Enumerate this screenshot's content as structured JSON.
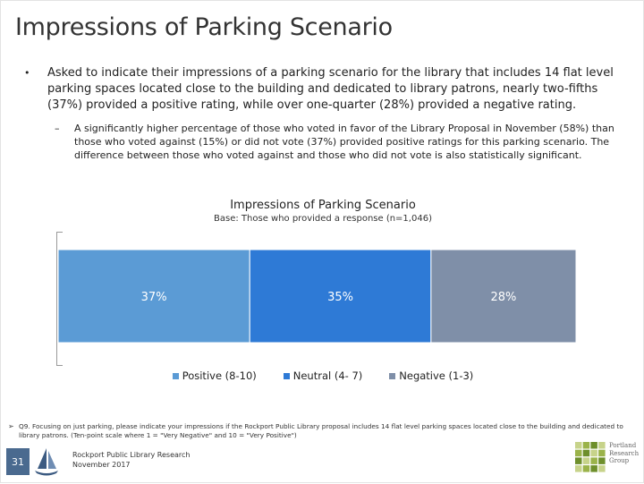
{
  "slide": {
    "title": "Impressions of Parking Scenario",
    "bullet_main": "Asked to indicate their impressions of a parking scenario for the library that includes 14 flat level parking spaces located close to the building and dedicated to library patrons, nearly two-fifths (37%) provided a positive rating, while over one-quarter (28%) provided a negative rating.",
    "bullet_sub": "A significantly higher percentage of those who voted in favor of the Library Proposal in November (58%) than those who voted against (15%) or did not vote (37%) provided positive ratings for this parking scenario. The difference between those who voted against and those who did not vote is also statistically significant.",
    "bullet_marker": "•",
    "sub_marker": "–",
    "footnote_marker": "➢",
    "footnote": "Q9. Focusing on just parking, please indicate your impressions if the Rockport Public Library proposal includes 14 flat level parking spaces located close to the building and dedicated to library patrons. (Ten-point scale where 1 = \"Very Negative\" and 10 = \"Very Positive\")",
    "page_number": "31",
    "org_line1": "Rockport Public Library Research",
    "org_line2": "November 2017",
    "logo_text_line1": "Portland",
    "logo_text_line2": "Research",
    "logo_text_line3": "Group"
  },
  "chart_data": {
    "type": "bar",
    "orientation": "horizontal-stacked-100",
    "title": "Impressions of Parking Scenario",
    "subtitle": "Base: Those who provided a response (n=1,046)",
    "series": [
      {
        "name": "Positive (8-10)",
        "value": 37,
        "label": "37%",
        "color": "#5b9bd5"
      },
      {
        "name": "Neutral (4- 7)",
        "value": 35,
        "label": "35%",
        "color": "#2e7ad6"
      },
      {
        "name": "Negative (1-3)",
        "value": 28,
        "label": "28%",
        "color": "#7f8fa8"
      }
    ],
    "legend_position": "bottom",
    "label_color": "#ffffff"
  }
}
